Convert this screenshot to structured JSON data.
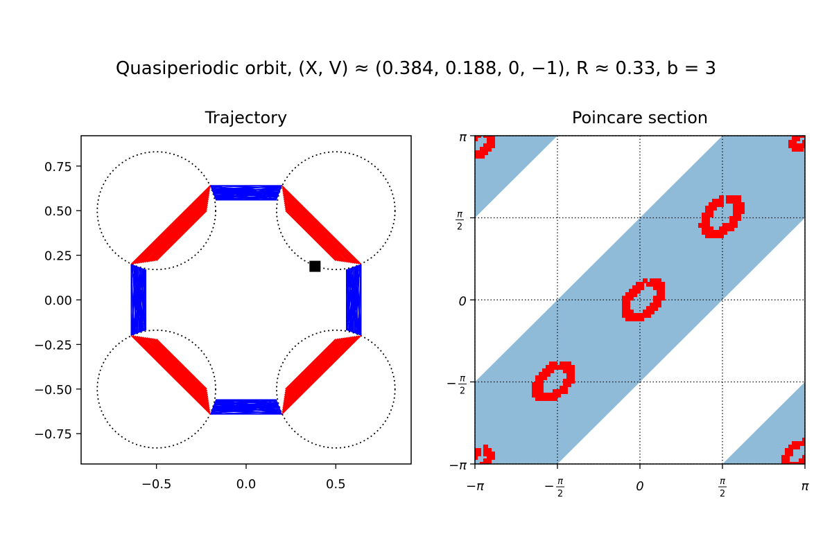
{
  "figure": {
    "suptitle": "Quasiperiodic orbit, (X, V) ≈ (0.384, 0.188, 0, −1), R ≈ 0.33, b = 3"
  },
  "chart_data": [
    {
      "type": "line",
      "title": "Trajectory",
      "xlabel": "",
      "ylabel": "",
      "xlim": [
        -0.92,
        0.92
      ],
      "ylim": [
        -0.92,
        0.92
      ],
      "xticks": [
        {
          "value": -0.5,
          "label": "−0.5"
        },
        {
          "value": 0.0,
          "label": "0.0"
        },
        {
          "value": 0.5,
          "label": "0.5"
        }
      ],
      "yticks": [
        {
          "value": 0.75,
          "label": "0.75"
        },
        {
          "value": 0.5,
          "label": "0.50"
        },
        {
          "value": 0.25,
          "label": "0.25"
        },
        {
          "value": 0.0,
          "label": "0.00"
        },
        {
          "value": -0.25,
          "label": "−0.25"
        },
        {
          "value": -0.5,
          "label": "−0.50"
        },
        {
          "value": -0.75,
          "label": "−0.75"
        }
      ],
      "grid": false,
      "scatterer_circles": {
        "style": "dotted",
        "radius": 0.33,
        "centers": [
          [
            -0.5,
            0.5
          ],
          [
            0.5,
            0.5
          ],
          [
            -0.5,
            -0.5
          ],
          [
            0.5,
            -0.5
          ]
        ]
      },
      "hexagon_vertices": [
        [
          0.64,
          0.2
        ],
        [
          0.2,
          0.64
        ],
        [
          -0.2,
          0.64
        ],
        [
          -0.64,
          0.2
        ],
        [
          -0.64,
          -0.2
        ],
        [
          -0.2,
          -0.64
        ],
        [
          0.2,
          -0.64
        ],
        [
          0.64,
          -0.2
        ]
      ],
      "series": [
        {
          "color": "#0000ff",
          "segments": "free flight between scatterers"
        },
        {
          "color": "#ff0000",
          "segments": "flight along scatterer arcs"
        }
      ],
      "start_point": {
        "x": 0.384,
        "y": 0.188,
        "marker": "square",
        "color": "#000000"
      }
    },
    {
      "type": "scatter",
      "title": "Poincare section",
      "xlabel": "",
      "ylabel": "",
      "xlim": [
        -3.14159,
        3.14159
      ],
      "ylim": [
        -3.14159,
        3.14159
      ],
      "xticks": [
        {
          "value": -3.14159,
          "label": "−π"
        },
        {
          "value": -1.5708,
          "label": "−π/2"
        },
        {
          "value": 0,
          "label": "0"
        },
        {
          "value": 1.5708,
          "label": "π/2"
        },
        {
          "value": 3.14159,
          "label": "π"
        }
      ],
      "yticks": [
        {
          "value": 3.14159,
          "label": "π"
        },
        {
          "value": 1.5708,
          "label": "π/2"
        },
        {
          "value": 0,
          "label": "0"
        },
        {
          "value": -1.5708,
          "label": "−π/2"
        },
        {
          "value": -3.14159,
          "label": "−π"
        }
      ],
      "grid": true,
      "grid_style": "dotted",
      "shaded_band": {
        "color": "#8fbbd9",
        "description": "region between y = x − 1.57 and y = x + 1.57, wrapped"
      },
      "point_color": "#ff0000",
      "clusters": [
        {
          "cx": -1.65,
          "cy": -1.55,
          "r": 0.42
        },
        {
          "cx": 0.05,
          "cy": 0.0,
          "r": 0.44
        },
        {
          "cx": 1.55,
          "cy": 1.6,
          "r": 0.44
        },
        {
          "cx": -3.05,
          "cy": 3.0,
          "r": 0.3
        },
        {
          "cx": 3.05,
          "cy": 3.05,
          "r": 0.2
        },
        {
          "cx": -3.05,
          "cy": -3.05,
          "r": 0.25
        },
        {
          "cx": 3.0,
          "cy": -2.95,
          "r": 0.3
        }
      ]
    }
  ]
}
